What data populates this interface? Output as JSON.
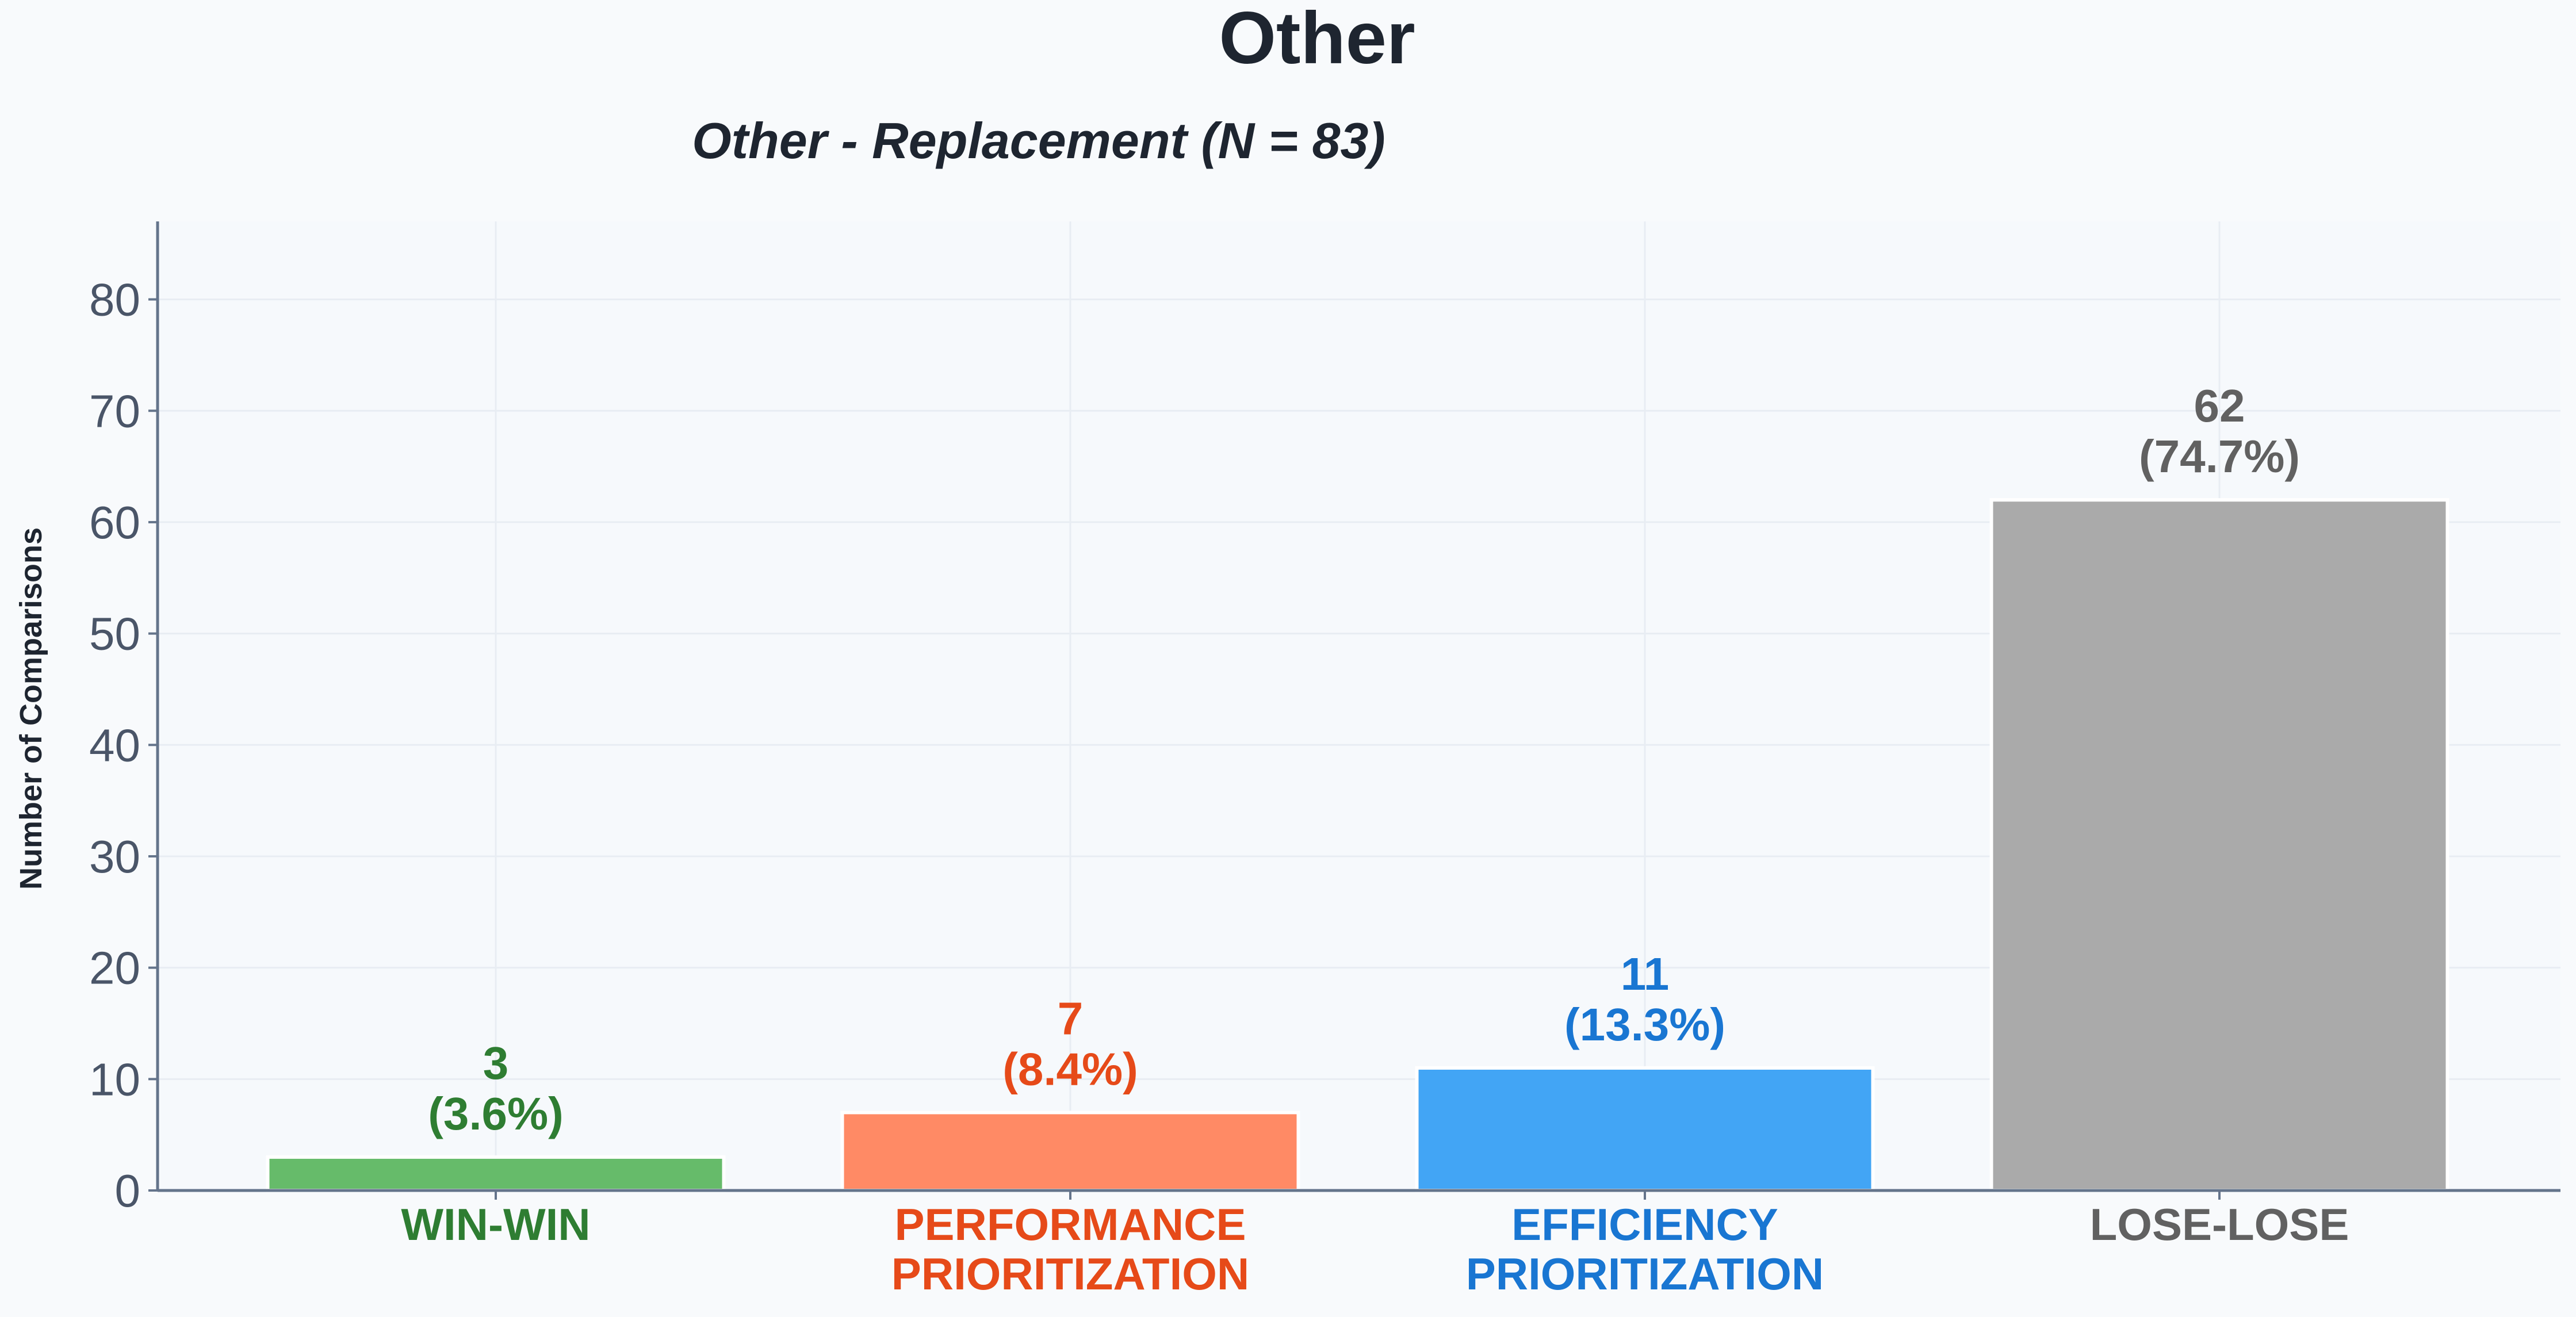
{
  "title": "Other",
  "chart_data": {
    "type": "bar",
    "title": "Other - Replacement (N = 83)",
    "xlabel": "",
    "ylabel": "Number of Comparisons",
    "ylim": [
      0,
      87
    ],
    "yticks": [
      0,
      10,
      20,
      30,
      40,
      50,
      60,
      70,
      80
    ],
    "grid": true,
    "categories": [
      [
        "WIN-WIN"
      ],
      [
        "PERFORMANCE",
        "PRIORITIZATION"
      ],
      [
        "EFFICIENCY",
        "PRIORITIZATION"
      ],
      [
        "LOSE-LOSE"
      ]
    ],
    "values": [
      3,
      7,
      11,
      62
    ],
    "value_labels": [
      "3",
      "7",
      "11",
      "62"
    ],
    "percent_labels": [
      "(3.6%)",
      "(8.4%)",
      "(13.3%)",
      "(74.7%)"
    ],
    "bar_colors": [
      "#66bb6a",
      "#ff8a65",
      "#42a5f5",
      "#aaaaaa"
    ],
    "label_colors": [
      "#2e7d32",
      "#e64a19",
      "#1976d2",
      "#616161"
    ]
  }
}
